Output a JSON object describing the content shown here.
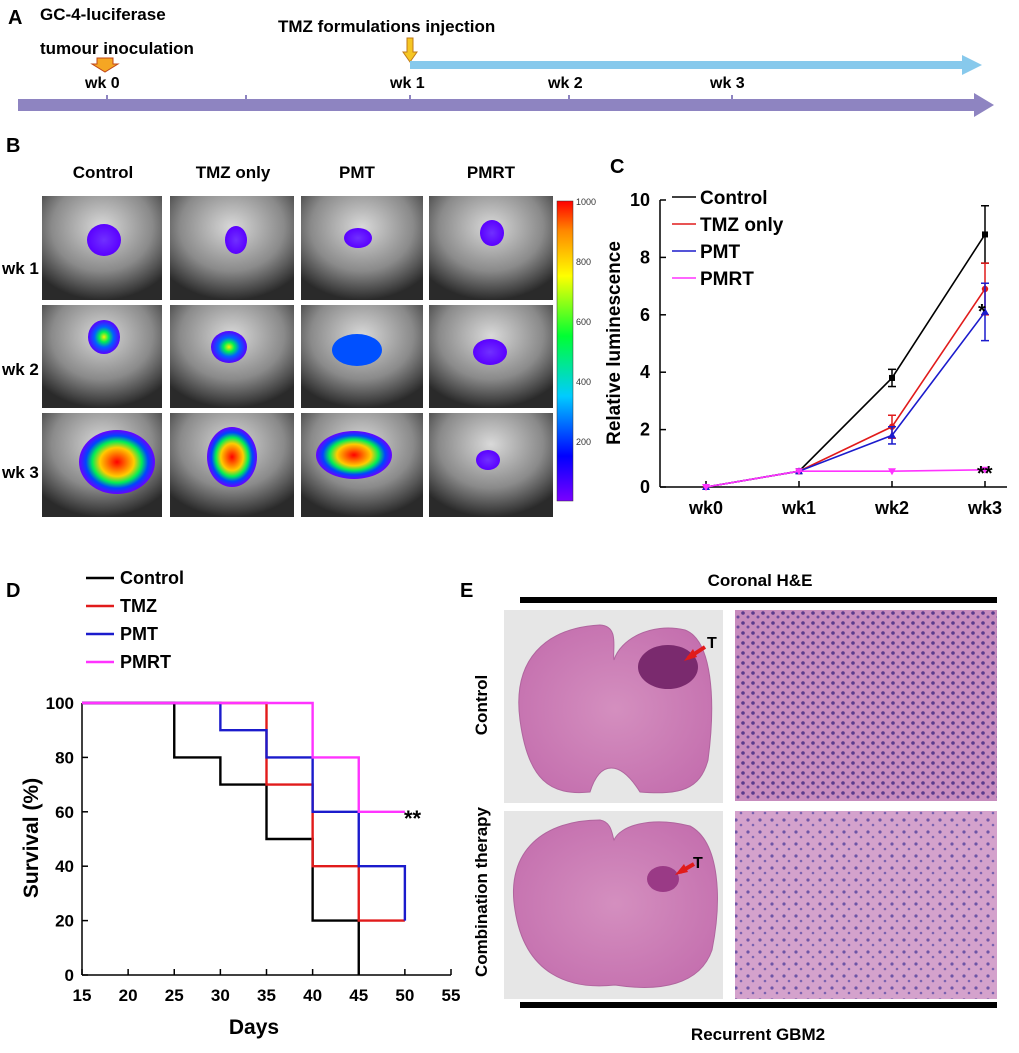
{
  "panel_labels": {
    "a": "A",
    "b": "B",
    "c": "C",
    "d": "D",
    "e": "E"
  },
  "timeline": {
    "inoculation_line1": "GC-4-luciferase",
    "inoculation_line2": "tumour inoculation",
    "injection": "TMZ formulations injection",
    "weeks": [
      "wk 0",
      "wk 1",
      "wk 2",
      "wk 3"
    ]
  },
  "imaging": {
    "columns": [
      "Control",
      "TMZ only",
      "PMT",
      "PMRT"
    ],
    "rows": [
      "wk 1",
      "wk 2",
      "wk 3"
    ],
    "colorbar_ticks": [
      "1000",
      "800",
      "600",
      "400",
      "200"
    ]
  },
  "histology": {
    "top_title": "Coronal H&E",
    "bottom_title": "Recurrent GBM2",
    "row_labels": [
      "Control",
      "Combination therapy"
    ],
    "tumor_marker": "T"
  },
  "colors": {
    "control": "#000000",
    "tmz": "#e11b1b",
    "pmt": "#1b1bcc",
    "pmrt": "#ff33ff",
    "timeline": "#8e84c1",
    "treatment": "#87c9ec",
    "arrow": "#f5a623"
  },
  "chart_data": [
    {
      "type": "line",
      "xlabel": "",
      "ylabel": "Relative luminescence",
      "categories": [
        "wk0",
        "wk1",
        "wk2",
        "wk3"
      ],
      "ylim": [
        0,
        10
      ],
      "yticks": [
        "0",
        "2",
        "4",
        "6",
        "8",
        "10"
      ],
      "series": [
        {
          "name": "Control",
          "values": [
            0,
            0.55,
            3.8,
            8.8
          ],
          "errors": [
            0,
            0.05,
            0.3,
            1.0
          ]
        },
        {
          "name": "TMZ only",
          "values": [
            0,
            0.55,
            2.1,
            6.9
          ],
          "errors": [
            0,
            0.05,
            0.4,
            0.9
          ]
        },
        {
          "name": "PMT",
          "values": [
            0,
            0.55,
            1.8,
            6.1
          ],
          "errors": [
            0,
            0.05,
            0.3,
            1.0
          ]
        },
        {
          "name": "PMRT",
          "values": [
            0,
            0.55,
            0.55,
            0.6
          ],
          "errors": [
            0,
            0.03,
            0.05,
            0.05
          ]
        }
      ],
      "annotations": [
        "*",
        "**"
      ]
    },
    {
      "type": "line",
      "xlabel": "Days",
      "ylabel": "Survival (%)",
      "xlim": [
        15,
        55
      ],
      "ylim": [
        0,
        100
      ],
      "xticks": [
        "15",
        "20",
        "25",
        "30",
        "35",
        "40",
        "45",
        "50",
        "55"
      ],
      "yticks": [
        "0",
        "20",
        "40",
        "60",
        "80",
        "100"
      ],
      "series": [
        {
          "name": "Control",
          "x": [
            15,
            25,
            25,
            30,
            30,
            35,
            35,
            40,
            40,
            45,
            45
          ],
          "values": [
            100,
            100,
            80,
            80,
            70,
            70,
            50,
            50,
            20,
            20,
            0
          ]
        },
        {
          "name": "TMZ",
          "x": [
            15,
            35,
            35,
            40,
            40,
            45,
            45,
            50
          ],
          "values": [
            100,
            100,
            70,
            70,
            40,
            40,
            20,
            20
          ]
        },
        {
          "name": "PMT",
          "x": [
            15,
            30,
            30,
            35,
            35,
            40,
            40,
            45,
            45,
            50,
            50
          ],
          "values": [
            100,
            100,
            90,
            90,
            80,
            80,
            60,
            60,
            40,
            40,
            20
          ]
        },
        {
          "name": "PMRT",
          "x": [
            15,
            40,
            40,
            45,
            45,
            50
          ],
          "values": [
            100,
            100,
            80,
            80,
            60,
            60
          ]
        }
      ],
      "annotations": [
        "**"
      ]
    }
  ]
}
